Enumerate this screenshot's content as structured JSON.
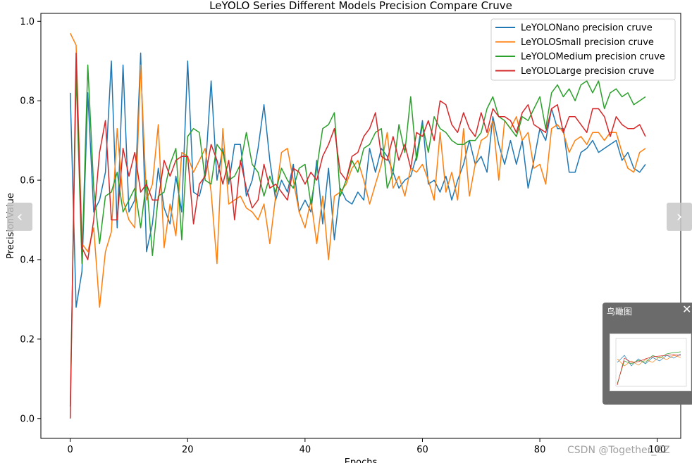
{
  "chart_data": {
    "type": "line",
    "title": "LeYOLO Series Different Models Precision Compare Cruve",
    "xlabel": "Epochs",
    "ylabel": "PrecisionValue",
    "xlim": [
      -5,
      104
    ],
    "ylim": [
      -0.05,
      1.02
    ],
    "xticks": [
      "0",
      "20",
      "40",
      "60",
      "80",
      "100"
    ],
    "yticks": [
      "0.0",
      "0.2",
      "0.4",
      "0.6",
      "0.8",
      "1.0"
    ],
    "grid": false,
    "legend_position": "top-right",
    "series": [
      {
        "name": "LeYOLONano precision cruve",
        "color": "#1f77b4",
        "values": [
          0.82,
          0.28,
          0.37,
          0.82,
          0.52,
          0.55,
          0.62,
          0.9,
          0.48,
          0.89,
          0.52,
          0.55,
          0.92,
          0.42,
          0.49,
          0.63,
          0.53,
          0.49,
          0.61,
          0.52,
          0.9,
          0.57,
          0.56,
          0.62,
          0.85,
          0.6,
          0.68,
          0.59,
          0.69,
          0.69,
          0.56,
          0.6,
          0.68,
          0.79,
          0.65,
          0.55,
          0.6,
          0.57,
          0.64,
          0.52,
          0.55,
          0.52,
          0.65,
          0.49,
          0.63,
          0.45,
          0.58,
          0.55,
          0.54,
          0.57,
          0.55,
          0.68,
          0.62,
          0.68,
          0.66,
          0.62,
          0.58,
          0.6,
          0.61,
          0.66,
          0.75,
          0.59,
          0.6,
          0.57,
          0.61,
          0.55,
          0.6,
          0.64,
          0.7,
          0.64,
          0.66,
          0.62,
          0.76,
          0.69,
          0.64,
          0.7,
          0.64,
          0.7,
          0.58,
          0.65,
          0.73,
          0.7,
          0.78,
          0.73,
          0.73,
          0.62,
          0.62,
          0.67,
          0.68,
          0.7,
          0.67,
          0.68,
          0.69,
          0.7,
          0.65,
          0.67,
          0.63,
          0.62,
          0.64
        ]
      },
      {
        "name": "LeYOLOSmall precision cruve",
        "color": "#ff7f0e",
        "values": [
          0.97,
          0.94,
          0.44,
          0.42,
          0.48,
          0.28,
          0.42,
          0.47,
          0.73,
          0.55,
          0.5,
          0.48,
          0.89,
          0.55,
          0.59,
          0.74,
          0.43,
          0.54,
          0.46,
          0.67,
          0.66,
          0.62,
          0.65,
          0.68,
          0.57,
          0.39,
          0.73,
          0.54,
          0.55,
          0.56,
          0.53,
          0.52,
          0.5,
          0.54,
          0.44,
          0.56,
          0.67,
          0.68,
          0.6,
          0.52,
          0.48,
          0.55,
          0.44,
          0.56,
          0.4,
          0.56,
          0.57,
          0.59,
          0.63,
          0.65,
          0.6,
          0.54,
          0.59,
          0.64,
          0.72,
          0.58,
          0.61,
          0.56,
          0.63,
          0.62,
          0.64,
          0.6,
          0.55,
          0.72,
          0.57,
          0.62,
          0.55,
          0.73,
          0.56,
          0.64,
          0.7,
          0.71,
          0.75,
          0.6,
          0.75,
          0.73,
          0.76,
          0.7,
          0.72,
          0.63,
          0.64,
          0.59,
          0.73,
          0.74,
          0.72,
          0.67,
          0.7,
          0.71,
          0.69,
          0.72,
          0.72,
          0.7,
          0.72,
          0.72,
          0.67,
          0.63,
          0.62,
          0.67,
          0.68
        ]
      },
      {
        "name": "LeYOLOMedium precision cruve",
        "color": "#2ca02c",
        "values": [
          0.03,
          0.87,
          0.39,
          0.89,
          0.58,
          0.44,
          0.56,
          0.57,
          0.62,
          0.52,
          0.55,
          0.58,
          0.48,
          0.6,
          0.41,
          0.56,
          0.57,
          0.64,
          0.68,
          0.45,
          0.71,
          0.73,
          0.72,
          0.6,
          0.59,
          0.69,
          0.67,
          0.6,
          0.61,
          0.64,
          0.72,
          0.64,
          0.62,
          0.56,
          0.61,
          0.57,
          0.63,
          0.6,
          0.58,
          0.63,
          0.64,
          0.54,
          0.63,
          0.73,
          0.74,
          0.77,
          0.56,
          0.6,
          0.65,
          0.62,
          0.68,
          0.69,
          0.72,
          0.73,
          0.58,
          0.62,
          0.74,
          0.67,
          0.81,
          0.65,
          0.74,
          0.67,
          0.76,
          0.73,
          0.72,
          0.7,
          0.69,
          0.69,
          0.7,
          0.7,
          0.72,
          0.78,
          0.81,
          0.76,
          0.75,
          0.73,
          0.71,
          0.76,
          0.75,
          0.78,
          0.81,
          0.73,
          0.82,
          0.84,
          0.81,
          0.83,
          0.8,
          0.84,
          0.85,
          0.82,
          0.85,
          0.78,
          0.82,
          0.83,
          0.81,
          0.82,
          0.79,
          0.8,
          0.81
        ]
      },
      {
        "name": "LeYOLOLarge precision cruve",
        "color": "#d62728",
        "values": [
          0.0,
          0.92,
          0.43,
          0.4,
          0.5,
          0.67,
          0.75,
          0.5,
          0.5,
          0.68,
          0.61,
          0.67,
          0.57,
          0.59,
          0.55,
          0.55,
          0.65,
          0.61,
          0.65,
          0.66,
          0.66,
          0.49,
          0.59,
          0.61,
          0.69,
          0.65,
          0.59,
          0.65,
          0.5,
          0.65,
          0.58,
          0.53,
          0.55,
          0.64,
          0.58,
          0.59,
          0.57,
          0.55,
          0.63,
          0.62,
          0.59,
          0.62,
          0.6,
          0.66,
          0.69,
          0.73,
          0.62,
          0.6,
          0.66,
          0.67,
          0.71,
          0.73,
          0.77,
          0.66,
          0.65,
          0.71,
          0.65,
          0.69,
          0.63,
          0.72,
          0.71,
          0.75,
          0.7,
          0.8,
          0.79,
          0.74,
          0.72,
          0.77,
          0.73,
          0.71,
          0.77,
          0.72,
          0.78,
          0.76,
          0.76,
          0.75,
          0.72,
          0.77,
          0.79,
          0.74,
          0.73,
          0.72,
          0.78,
          0.79,
          0.72,
          0.76,
          0.76,
          0.74,
          0.72,
          0.78,
          0.78,
          0.76,
          0.71,
          0.76,
          0.74,
          0.73,
          0.73,
          0.74,
          0.71
        ]
      }
    ]
  },
  "nav": {
    "prev_label": "‹",
    "next_label": "›"
  },
  "overview": {
    "title": "鸟瞰图",
    "close_label": "✕"
  },
  "watermark": "CSDN @Together_CZ"
}
